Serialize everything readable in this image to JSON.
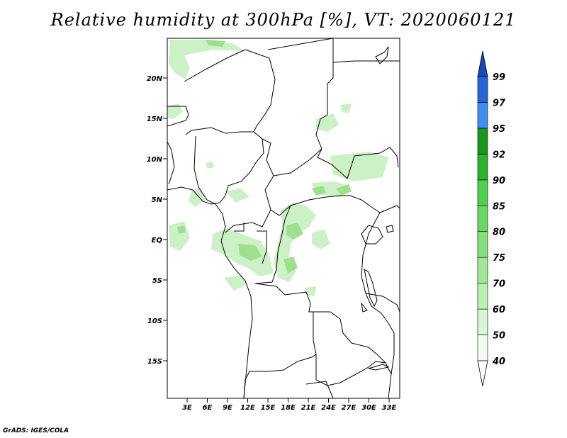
{
  "title": "Relative humidity at 300hPa [%], VT: 2020060121",
  "credit": "GrADS: IGES/COLA",
  "map": {
    "lon_range": [
      0,
      35
    ],
    "lat_range": [
      -20,
      25
    ],
    "lat_ticks": [
      "20N",
      "15N",
      "10N",
      "5N",
      "EQ",
      "5S",
      "10S",
      "15S"
    ],
    "lon_ticks": [
      "3E",
      "6E",
      "9E",
      "12E",
      "15E",
      "18E",
      "21E",
      "24E",
      "27E",
      "30E",
      "33E"
    ]
  },
  "colorbar": {
    "levels": [
      "40",
      "50",
      "60",
      "70",
      "75",
      "80",
      "85",
      "90",
      "92",
      "95",
      "97",
      "99"
    ],
    "colors": [
      "#f0fff0",
      "#d7f7d2",
      "#bcefb4",
      "#a0e796",
      "#85df7b",
      "#6bd763",
      "#4fcf4a",
      "#2bb42b",
      "#1a961c",
      "#3e8ef0",
      "#2266d8",
      "#1a47b8"
    ]
  }
}
